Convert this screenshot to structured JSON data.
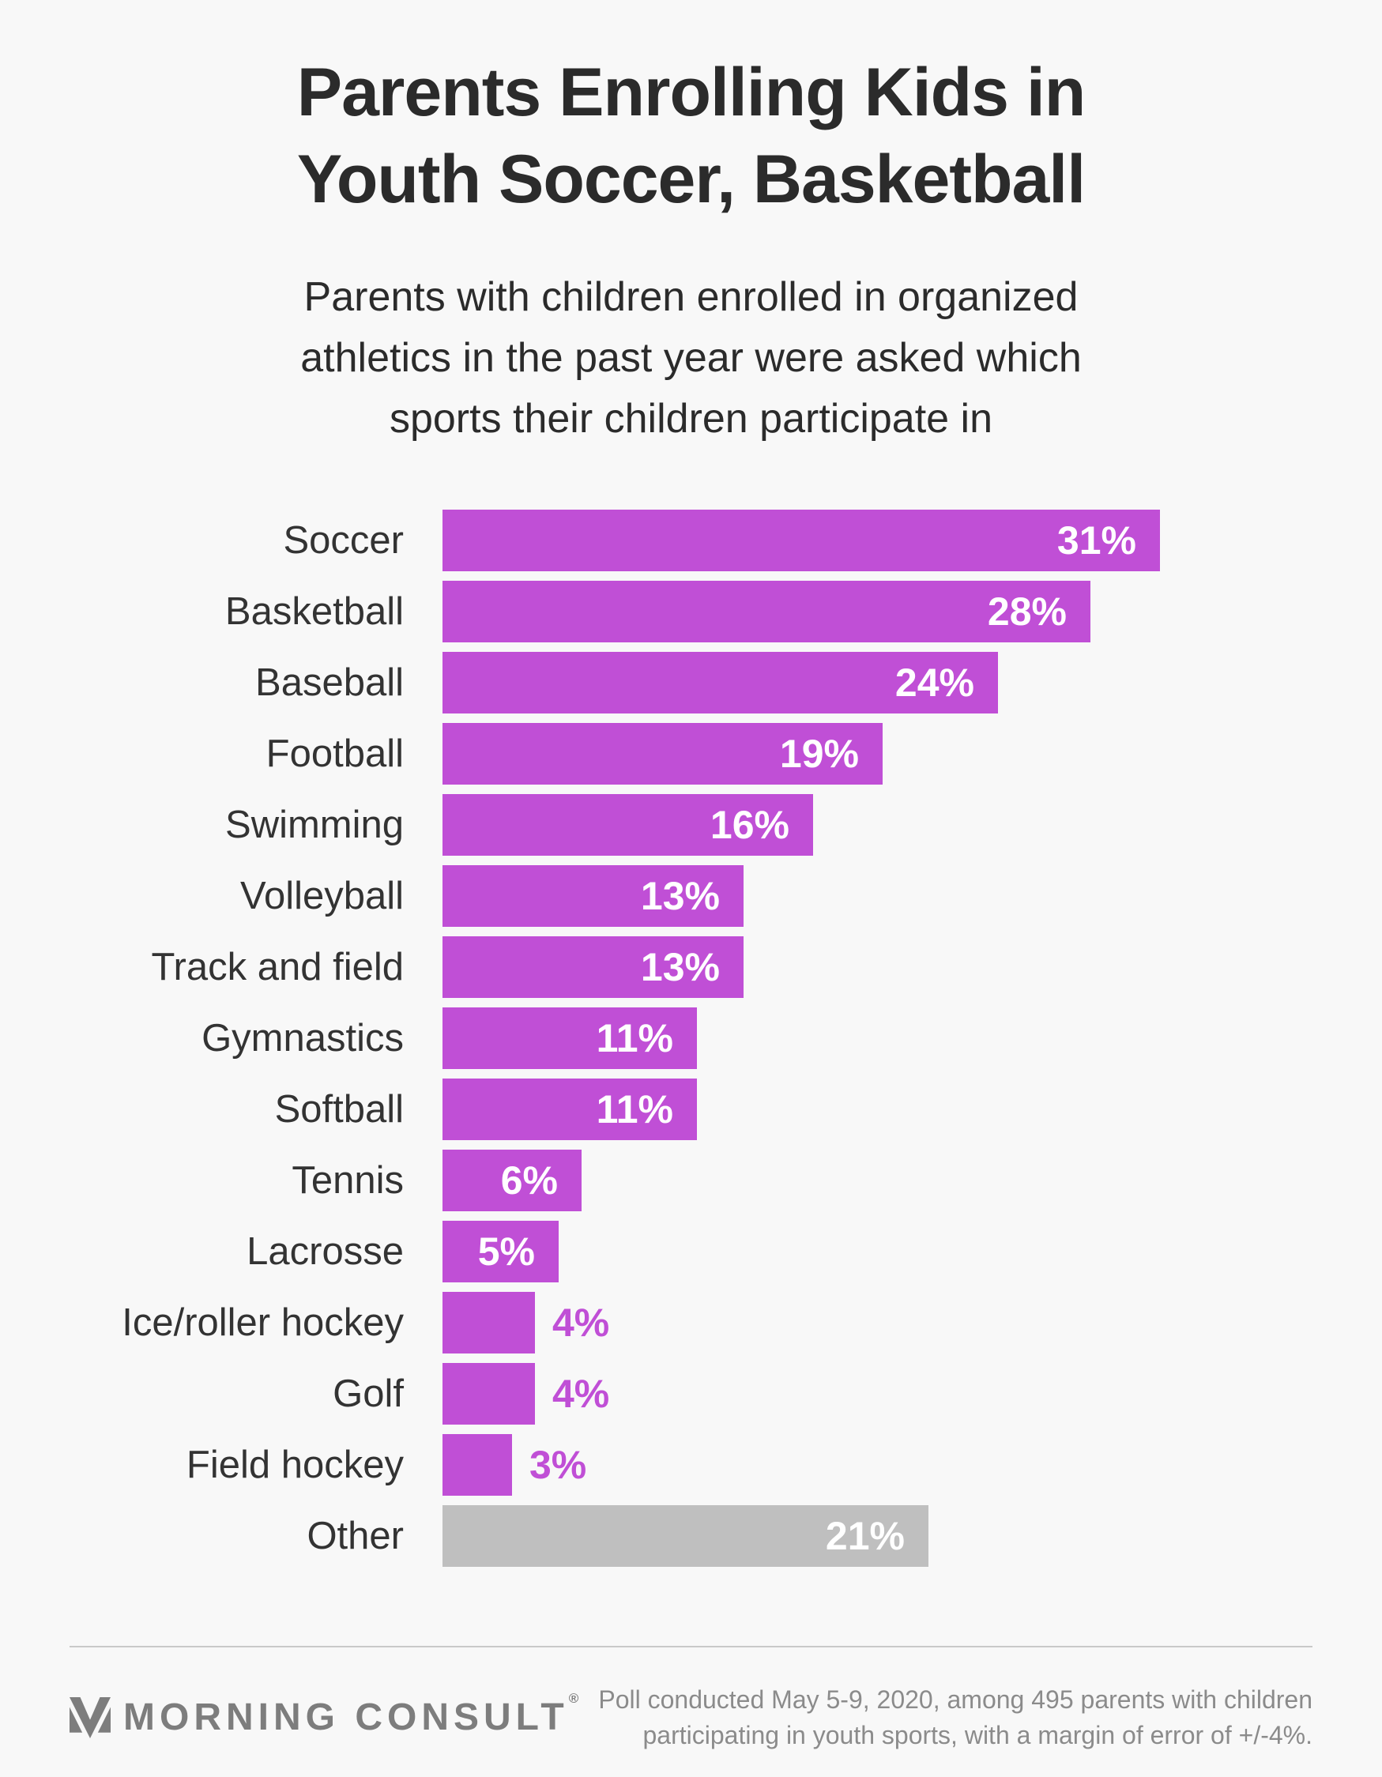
{
  "title": {
    "lines": [
      "Parents Enrolling Kids in",
      "Youth Soccer, Basketball"
    ]
  },
  "subtitle": {
    "lines": [
      "Parents with children enrolled in organized",
      "athletics in the past year were asked which",
      "sports their children participate in"
    ]
  },
  "chart_data": {
    "type": "bar",
    "orientation": "horizontal",
    "title": "Parents Enrolling Kids in Youth Soccer, Basketball",
    "categories": [
      "Soccer",
      "Basketball",
      "Baseball",
      "Football",
      "Swimming",
      "Volleyball",
      "Track and field",
      "Gymnastics",
      "Softball",
      "Tennis",
      "Lacrosse",
      "Ice/roller hockey",
      "Golf",
      "Field hockey",
      "Other"
    ],
    "values": [
      31,
      28,
      24,
      19,
      16,
      13,
      13,
      11,
      11,
      6,
      5,
      4,
      4,
      3,
      21
    ],
    "value_labels": [
      "31%",
      "28%",
      "24%",
      "19%",
      "16%",
      "13%",
      "13%",
      "11%",
      "11%",
      "6%",
      "5%",
      "4%",
      "4%",
      "3%",
      "21%"
    ],
    "unit": "%",
    "xlim": [
      0,
      31
    ],
    "gridlines": false,
    "legend": false,
    "bar_colors": {
      "default": "#c04fd6",
      "other": "#bfbfbf"
    }
  },
  "footer": {
    "brand": "MORNING CONSULT",
    "registered": "®",
    "note_lines": [
      "Poll conducted May 5-9, 2020, among 495 parents with children",
      "participating in youth sports, with a margin of error of +/-4%."
    ]
  },
  "colors": {
    "background": "#f8f8f8",
    "title_text": "#2b2b2b",
    "label_text": "#333333",
    "footer_text": "#8b8b8b",
    "logo_gray": "#7d7d7d",
    "divider": "#c9c9c9"
  }
}
